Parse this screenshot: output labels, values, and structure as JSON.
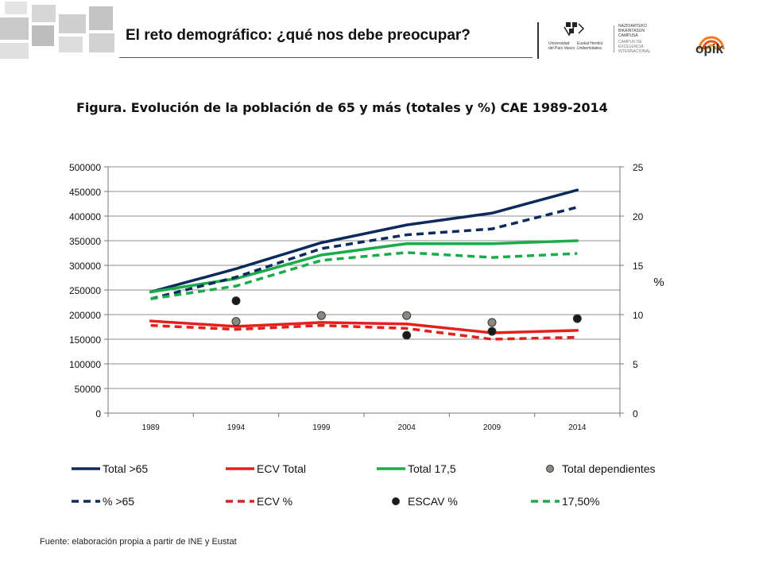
{
  "header": {
    "title": "El reto demográfico: ¿qué nos debe preocupar?",
    "logo_upv": {
      "line1": "Universidad",
      "line2": "del País Vasco",
      "line3": "Euskal Herriko",
      "line4": "Unibertsitatea",
      "icon": "upv-ehu-logo"
    },
    "logo_campus": {
      "line1": "NAZIOARTEKO",
      "line2": "BIKAINTASUN",
      "line3": "CAMPUSA",
      "line4": "CAMPUS DE",
      "line5": "EXCELENCIA",
      "line6": "INTERNACIONAL"
    },
    "logo_opik": {
      "text": "opik",
      "icon": "opik-logo"
    }
  },
  "figure_title": "Figura. Evolución de la población de 65 y más (totales y %) CAE 1989-2014",
  "footer": {
    "source": "Fuente: elaboración propia a partir de INE y Eustat"
  },
  "colors": {
    "navy": "#0d2a5c",
    "red": "#e3201b",
    "green": "#1aab4b",
    "gray_marker": "#8a8a80",
    "black_marker": "#1a1a1a"
  },
  "chart_data": {
    "type": "line",
    "title": "",
    "categories": [
      "1989",
      "1994",
      "1999",
      "2004",
      "2009",
      "2014"
    ],
    "ylim_left": [
      0,
      500000
    ],
    "yticks_left": [
      "0",
      "50000",
      "100000",
      "150000",
      "200000",
      "250000",
      "300000",
      "350000",
      "400000",
      "450000",
      "500000"
    ],
    "ylim_right": [
      0,
      25
    ],
    "yticks_right": [
      "0",
      "5",
      "10",
      "15",
      "20",
      "25"
    ],
    "ylabel_right": "%",
    "grid": true,
    "legend_position": "bottom",
    "series": [
      {
        "name": "Total >65",
        "axis": "left",
        "style": "solid",
        "color": "#0d2a5c",
        "values": [
          246000,
          293000,
          346000,
          382000,
          406000,
          453000
        ]
      },
      {
        "name": "ECV Total",
        "axis": "left",
        "style": "solid",
        "color": "#e3201b",
        "values": [
          187000,
          176000,
          184000,
          181000,
          163000,
          168000
        ]
      },
      {
        "name": "Total 17,5",
        "axis": "left",
        "style": "solid",
        "color": "#1aab4b",
        "values": [
          246000,
          273000,
          321000,
          344000,
          344000,
          350000
        ]
      },
      {
        "name": "Total dependientes",
        "axis": "right",
        "style": "marker",
        "color": "#8a8a80",
        "values": [
          null,
          9.3,
          9.9,
          9.9,
          9.2,
          null
        ]
      },
      {
        "name": "% >65",
        "axis": "right",
        "style": "dashed",
        "color": "#0d2a5c",
        "values": [
          11.6,
          13.8,
          16.7,
          18.1,
          18.7,
          20.9
        ]
      },
      {
        "name": "ECV %",
        "axis": "right",
        "style": "dashed",
        "color": "#e3201b",
        "values": [
          8.9,
          8.5,
          8.9,
          8.6,
          7.5,
          7.7
        ]
      },
      {
        "name": "ESCAV %",
        "axis": "right",
        "style": "marker",
        "color": "#1a1a1a",
        "values": [
          null,
          11.4,
          null,
          7.9,
          8.3,
          9.6
        ]
      },
      {
        "name": "17,50%",
        "axis": "right",
        "style": "dashed",
        "color": "#1aab4b",
        "values": [
          11.6,
          12.9,
          15.5,
          16.3,
          15.8,
          16.2
        ]
      }
    ]
  }
}
